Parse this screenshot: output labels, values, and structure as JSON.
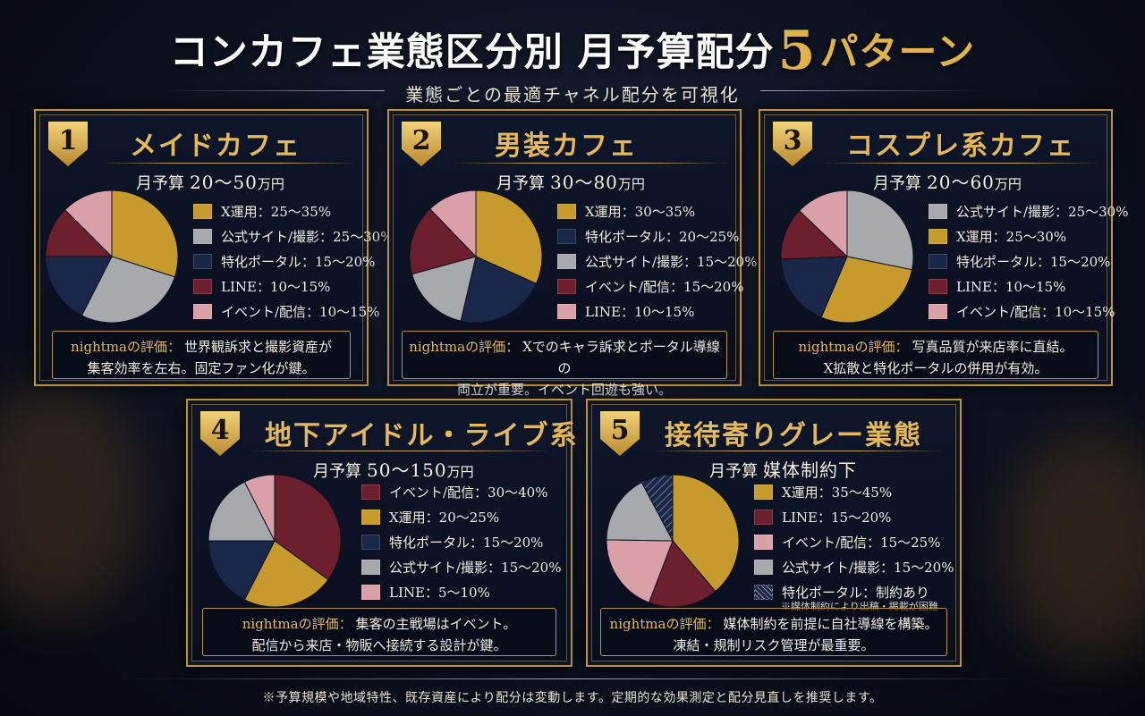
{
  "header": {
    "title_part1": "コンカフェ業態区分別 月予算配分",
    "title_number": "5",
    "title_part2": "パターン",
    "subtitle": "業態ごとの最適チャネル配分を可視化"
  },
  "budget_label": "月予算",
  "eval_label": "nightmaの評価：",
  "colors": {
    "gold": "#c79a2e",
    "silver": "#a7a9ad",
    "navy": "#1b2749",
    "crimson": "#6e1f2e",
    "pink": "#d9a1a7",
    "hatch": "#1b2749",
    "accent": "#e5b95a"
  },
  "chart_data": [
    {
      "type": "pie",
      "number": "1",
      "title": "メイドカフェ",
      "budget_value": "20～50",
      "budget_unit": "万円",
      "slices": [
        {
          "label": "X運用：25～35%",
          "value": 30,
          "color": "gold"
        },
        {
          "label": "公式サイト/撮影：25～30%",
          "value": 27.5,
          "color": "silver"
        },
        {
          "label": "特化ポータル：15～20%",
          "value": 17.5,
          "color": "navy"
        },
        {
          "label": "LINE：10～15%",
          "value": 12.5,
          "color": "crimson"
        },
        {
          "label": "イベント/配信：10～15%",
          "value": 12.5,
          "color": "pink"
        }
      ],
      "note": "",
      "evaluation_lines": [
        "世界観訴求と撮影資産が",
        "集客効率を左右。固定ファン化が鍵。"
      ]
    },
    {
      "type": "pie",
      "number": "2",
      "title": "男装カフェ",
      "budget_value": "30～80",
      "budget_unit": "万円",
      "slices": [
        {
          "label": "X運用：30～35%",
          "value": 32.5,
          "color": "gold"
        },
        {
          "label": "特化ポータル：20～25%",
          "value": 22.5,
          "color": "navy"
        },
        {
          "label": "公式サイト/撮影：15～20%",
          "value": 17.5,
          "color": "silver"
        },
        {
          "label": "イベント/配信：15～20%",
          "value": 17.5,
          "color": "crimson"
        },
        {
          "label": "LINE：10～15%",
          "value": 12.5,
          "color": "pink"
        }
      ],
      "note": "",
      "evaluation_lines": [
        "Xでのキャラ訴求とポータル導線の",
        "両立が重要。イベント回遊も強い。"
      ]
    },
    {
      "type": "pie",
      "number": "3",
      "title": "コスプレ系カフェ",
      "budget_value": "20～60",
      "budget_unit": "万円",
      "slices": [
        {
          "label": "公式サイト/撮影：25～30%",
          "value": 27.5,
          "color": "silver"
        },
        {
          "label": "X運用：25～30%",
          "value": 27.5,
          "color": "gold"
        },
        {
          "label": "特化ポータル：15～20%",
          "value": 17.5,
          "color": "navy"
        },
        {
          "label": "LINE：10～15%",
          "value": 12.5,
          "color": "crimson"
        },
        {
          "label": "イベント/配信：10～15%",
          "value": 12.5,
          "color": "pink"
        }
      ],
      "note": "",
      "evaluation_lines": [
        "写真品質が来店率に直結。",
        "X拡散と特化ポータルの併用が有効。"
      ]
    },
    {
      "type": "pie",
      "number": "4",
      "title": "地下アイドル・ライブ系",
      "budget_value": "50～150",
      "budget_unit": "万円",
      "slices": [
        {
          "label": "イベント/配信：30～40%",
          "value": 35,
          "color": "crimson"
        },
        {
          "label": "X運用：20～25%",
          "value": 22.5,
          "color": "gold"
        },
        {
          "label": "特化ポータル：15～20%",
          "value": 17.5,
          "color": "navy"
        },
        {
          "label": "公式サイト/撮影：15～20%",
          "value": 17.5,
          "color": "silver"
        },
        {
          "label": "LINE：5～10%",
          "value": 7.5,
          "color": "pink"
        }
      ],
      "note": "",
      "evaluation_lines": [
        "集客の主戦場はイベント。",
        "配信から来店・物販へ接続する設計が鍵。"
      ]
    },
    {
      "type": "pie",
      "number": "5",
      "title": "接待寄りグレー業態",
      "budget_value": "媒体制約下",
      "budget_unit": "",
      "slices": [
        {
          "label": "X運用：35～45%",
          "value": 40,
          "color": "gold"
        },
        {
          "label": "LINE：15～20%",
          "value": 17.5,
          "color": "crimson"
        },
        {
          "label": "イベント/配信：15～25%",
          "value": 20,
          "color": "pink"
        },
        {
          "label": "公式サイト/撮影：15～20%",
          "value": 17.5,
          "color": "silver"
        },
        {
          "label": "特化ポータル：制約あり",
          "value": 8,
          "color": "hatch"
        }
      ],
      "note": "※媒体制約により出稿・掲載が困難",
      "evaluation_lines": [
        "媒体制約を前提に自社導線を構築。",
        "凍結・規制リスク管理が最重要。"
      ]
    }
  ],
  "footer": "※予算規模や地域特性、既存資産により配分は変動します。定期的な効果測定と配分見直しを推奨します。"
}
